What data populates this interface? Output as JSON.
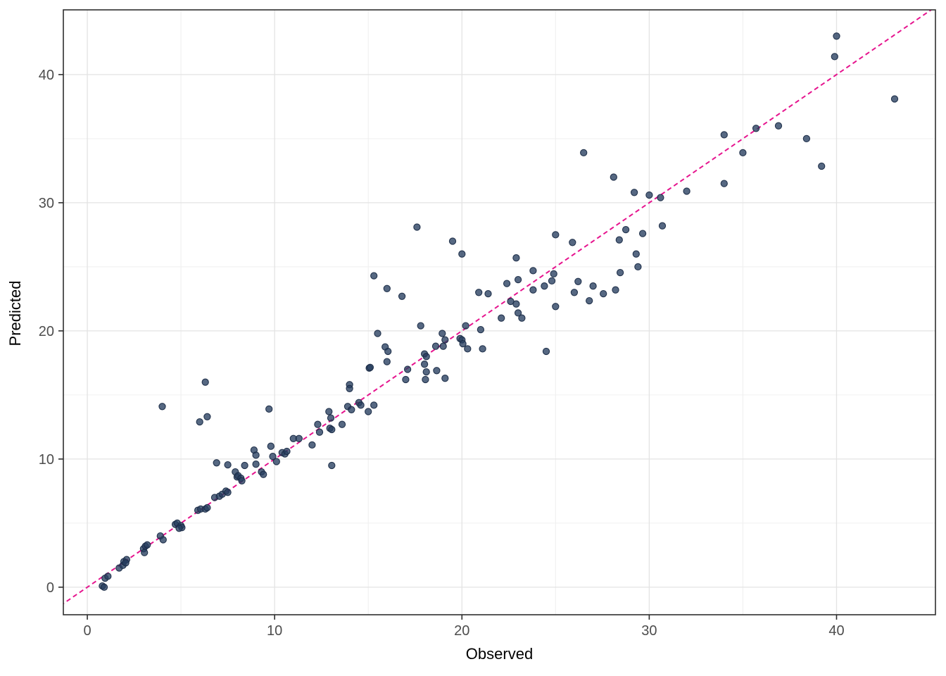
{
  "chart_data": {
    "type": "scatter",
    "title": "",
    "xlabel": "Observed",
    "ylabel": "Predicted",
    "xlim": [
      -1.28,
      45.28
    ],
    "ylim": [
      -2.15,
      45.05
    ],
    "x_ticks": [
      0,
      10,
      20,
      30,
      40
    ],
    "x_tick_labels": [
      "0",
      "10",
      "20",
      "30",
      "40"
    ],
    "y_ticks": [
      0,
      10,
      20,
      30,
      40
    ],
    "y_tick_labels": [
      "0",
      "10",
      "20",
      "30",
      "40"
    ],
    "x_minor_ticks": [
      5,
      15,
      25,
      35
    ],
    "y_minor_ticks": [
      5,
      15,
      25,
      35
    ],
    "grid": true,
    "legend": "none",
    "identity_line": {
      "equation": "y = x",
      "style": "dashed",
      "color": "#E6148E"
    },
    "points": [
      [
        0.8,
        0.1
      ],
      [
        0.9,
        0.0
      ],
      [
        0.95,
        0.7
      ],
      [
        1.1,
        0.85
      ],
      [
        1.7,
        1.5
      ],
      [
        1.9,
        1.7
      ],
      [
        1.95,
        2.0
      ],
      [
        2.1,
        2.15
      ],
      [
        2.05,
        1.9
      ],
      [
        3.0,
        3.0
      ],
      [
        3.1,
        3.2
      ],
      [
        3.2,
        3.3
      ],
      [
        3.05,
        2.7
      ],
      [
        3.9,
        4.0
      ],
      [
        4.05,
        3.7
      ],
      [
        4.7,
        4.9
      ],
      [
        4.8,
        5.0
      ],
      [
        5.0,
        4.8
      ],
      [
        5.05,
        4.65
      ],
      [
        4.9,
        4.6
      ],
      [
        5.9,
        6.0
      ],
      [
        6.05,
        6.1
      ],
      [
        6.3,
        6.1
      ],
      [
        6.4,
        6.2
      ],
      [
        6.8,
        7.0
      ],
      [
        7.05,
        7.1
      ],
      [
        7.2,
        7.25
      ],
      [
        7.4,
        7.5
      ],
      [
        7.5,
        7.4
      ],
      [
        6.9,
        9.7
      ],
      [
        7.5,
        9.55
      ],
      [
        7.9,
        9.0
      ],
      [
        8.4,
        9.5
      ],
      [
        8.0,
        8.6
      ],
      [
        8.05,
        8.7
      ],
      [
        8.2,
        8.5
      ],
      [
        8.25,
        8.3
      ],
      [
        8.9,
        10.7
      ],
      [
        9.0,
        10.3
      ],
      [
        9.0,
        9.6
      ],
      [
        9.3,
        9.0
      ],
      [
        9.4,
        8.8
      ],
      [
        9.8,
        11.0
      ],
      [
        9.9,
        10.2
      ],
      [
        10.1,
        9.8
      ],
      [
        10.4,
        10.5
      ],
      [
        10.55,
        10.4
      ],
      [
        10.65,
        10.6
      ],
      [
        11.0,
        11.6
      ],
      [
        11.3,
        11.6
      ],
      [
        4.0,
        14.1
      ],
      [
        6.3,
        16.0
      ],
      [
        6.4,
        13.3
      ],
      [
        6.0,
        12.9
      ],
      [
        9.7,
        13.9
      ],
      [
        12.0,
        11.1
      ],
      [
        12.3,
        12.7
      ],
      [
        12.4,
        12.1
      ],
      [
        12.9,
        13.7
      ],
      [
        13.0,
        13.2
      ],
      [
        12.95,
        12.4
      ],
      [
        13.05,
        12.3
      ],
      [
        13.6,
        12.7
      ],
      [
        13.9,
        14.1
      ],
      [
        14.1,
        13.85
      ],
      [
        14.5,
        14.4
      ],
      [
        14.6,
        14.2
      ],
      [
        15.0,
        13.7
      ],
      [
        15.3,
        14.2
      ],
      [
        13.05,
        9.5
      ],
      [
        14.0,
        15.8
      ],
      [
        14.0,
        15.5
      ],
      [
        15.05,
        17.1
      ],
      [
        15.1,
        17.15
      ],
      [
        15.5,
        19.8
      ],
      [
        15.9,
        18.75
      ],
      [
        16.05,
        18.4
      ],
      [
        16.0,
        17.6
      ],
      [
        17.1,
        17.0
      ],
      [
        17.0,
        16.2
      ],
      [
        17.8,
        20.4
      ],
      [
        18.0,
        18.2
      ],
      [
        18.1,
        18.0
      ],
      [
        18.0,
        17.4
      ],
      [
        18.1,
        16.8
      ],
      [
        18.05,
        16.2
      ],
      [
        18.65,
        16.9
      ],
      [
        19.1,
        16.3
      ],
      [
        18.6,
        18.8
      ],
      [
        19.0,
        18.8
      ],
      [
        19.1,
        19.3
      ],
      [
        18.95,
        19.8
      ],
      [
        19.9,
        19.4
      ],
      [
        20.0,
        19.3
      ],
      [
        20.05,
        19.0
      ],
      [
        20.2,
        20.4
      ],
      [
        21.0,
        20.1
      ],
      [
        20.3,
        18.6
      ],
      [
        21.1,
        18.6
      ],
      [
        22.1,
        21.0
      ],
      [
        23.0,
        21.4
      ],
      [
        23.2,
        21.0
      ],
      [
        17.6,
        28.1
      ],
      [
        19.5,
        27.0
      ],
      [
        20.0,
        26.0
      ],
      [
        22.9,
        25.7
      ],
      [
        15.3,
        24.3
      ],
      [
        16.0,
        23.3
      ],
      [
        16.8,
        22.7
      ],
      [
        20.9,
        23.0
      ],
      [
        21.4,
        22.9
      ],
      [
        22.4,
        23.7
      ],
      [
        23.0,
        24.0
      ],
      [
        23.8,
        24.7
      ],
      [
        23.8,
        23.2
      ],
      [
        22.6,
        22.3
      ],
      [
        22.9,
        22.1
      ],
      [
        25.0,
        27.5
      ],
      [
        25.9,
        26.9
      ],
      [
        28.4,
        27.1
      ],
      [
        28.75,
        27.9
      ],
      [
        29.65,
        27.6
      ],
      [
        30.7,
        28.2
      ],
      [
        29.3,
        26.0
      ],
      [
        29.4,
        25.0
      ],
      [
        28.45,
        24.55
      ],
      [
        24.9,
        24.45
      ],
      [
        24.8,
        23.9
      ],
      [
        24.4,
        23.5
      ],
      [
        26.2,
        23.85
      ],
      [
        26.0,
        23.0
      ],
      [
        26.8,
        22.35
      ],
      [
        27.0,
        23.5
      ],
      [
        27.55,
        22.9
      ],
      [
        28.2,
        23.2
      ],
      [
        25.0,
        21.9
      ],
      [
        24.5,
        18.4
      ],
      [
        26.5,
        33.9
      ],
      [
        28.1,
        32.0
      ],
      [
        29.2,
        30.8
      ],
      [
        30.0,
        30.6
      ],
      [
        30.6,
        30.4
      ],
      [
        32.0,
        30.9
      ],
      [
        34.0,
        35.3
      ],
      [
        35.0,
        33.9
      ],
      [
        34.0,
        31.5
      ],
      [
        35.7,
        35.8
      ],
      [
        36.9,
        36.0
      ],
      [
        40.0,
        43.0
      ],
      [
        39.9,
        41.4
      ],
      [
        43.1,
        38.1
      ],
      [
        38.4,
        35.0
      ],
      [
        39.2,
        32.85
      ]
    ],
    "colors": {
      "point_fill": "#273E5F",
      "point_stroke": "#1B2C47",
      "dash_line": "#E6148E",
      "grid_major": "#E3E3E3",
      "grid_minor": "#F0F0F0",
      "axis_text": "#4D4D4D",
      "axis_line": "#2E2E2E",
      "background": "#FFFFFF"
    }
  }
}
